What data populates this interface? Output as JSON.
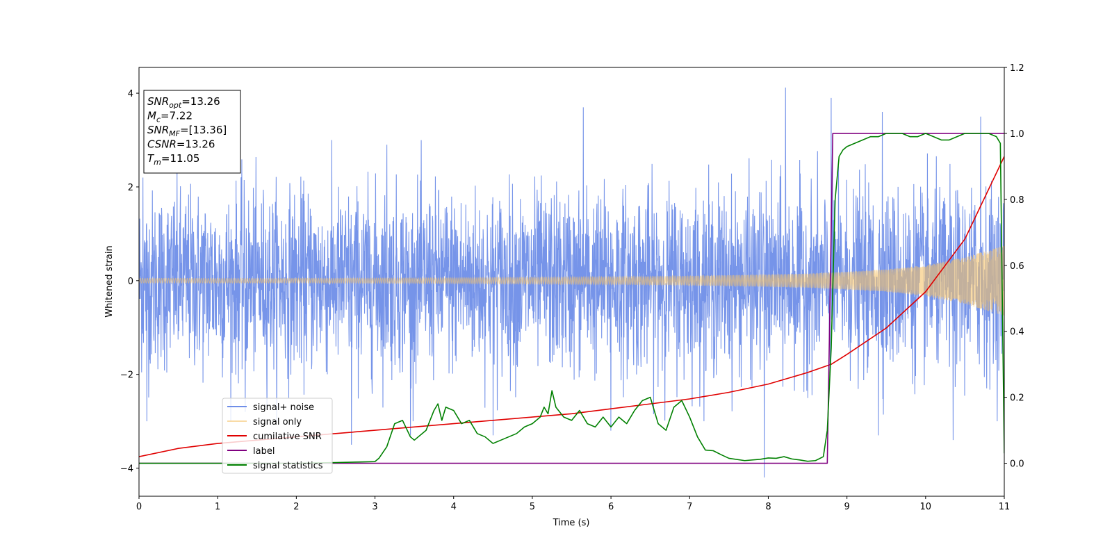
{
  "chart_data": {
    "type": "line",
    "title": "",
    "xlabel": "Time (s)",
    "ylabel": "Whitened strain",
    "xlim": [
      0,
      11
    ],
    "ylim_left": [
      -4.6,
      4.55
    ],
    "ylim_right": [
      -0.1,
      1.2
    ],
    "x_ticks": [
      0,
      1,
      2,
      3,
      4,
      5,
      6,
      7,
      8,
      9,
      10,
      11
    ],
    "y_ticks_left": [
      -4,
      -2,
      0,
      2,
      4
    ],
    "y_ticks_right": [
      "0.0",
      "0.2",
      "0.4",
      "0.6",
      "0.8",
      "1.0",
      "1.2"
    ],
    "grid": false,
    "legend_position": "lower-left",
    "series": [
      {
        "name": "signal+ noise",
        "axis": "left",
        "color": "#6f8ee8",
        "description_values": {
          "approx_range": [
            -4.2,
            4.15
          ],
          "typical_std": 1.0
        },
        "spike_peaks": [
          [
            0.05,
            2.2
          ],
          [
            1.3,
            2.2
          ],
          [
            3.15,
            2.9
          ],
          [
            5.65,
            3.7
          ],
          [
            8.22,
            4.12
          ],
          [
            8.8,
            3.9
          ],
          [
            9.45,
            3.6
          ],
          [
            10.7,
            3.5
          ]
        ],
        "spike_troughs": [
          [
            0.1,
            -3.0
          ],
          [
            1.35,
            -2.8
          ],
          [
            2.7,
            -3.5
          ],
          [
            3.45,
            -3.3
          ],
          [
            4.5,
            -3.3
          ],
          [
            6.0,
            -3.2
          ],
          [
            7.95,
            -4.2
          ],
          [
            9.4,
            -3.3
          ],
          [
            10.35,
            -3.4
          ]
        ]
      },
      {
        "name": "signal only",
        "axis": "left",
        "color": "#f5c36b",
        "envelope": [
          [
            0,
            0.05
          ],
          [
            2,
            0.05
          ],
          [
            4,
            0.06
          ],
          [
            6,
            0.08
          ],
          [
            7,
            0.1
          ],
          [
            8,
            0.13
          ],
          [
            8.5,
            0.15
          ],
          [
            9,
            0.19
          ],
          [
            9.5,
            0.24
          ],
          [
            10,
            0.33
          ],
          [
            10.5,
            0.5
          ],
          [
            10.8,
            0.65
          ],
          [
            11,
            0.75
          ]
        ]
      },
      {
        "name": "cumilative SNR",
        "axis": "right",
        "color": "#e00000",
        "x": [
          0,
          0.5,
          1,
          1.5,
          2,
          2.5,
          3,
          3.5,
          4,
          4.5,
          5,
          5.5,
          6,
          6.5,
          7,
          7.5,
          8,
          8.5,
          8.8,
          9,
          9.5,
          10,
          10.5,
          11
        ],
        "y": [
          0.02,
          0.045,
          0.06,
          0.07,
          0.08,
          0.09,
          0.1,
          0.11,
          0.12,
          0.13,
          0.14,
          0.15,
          0.165,
          0.18,
          0.195,
          0.215,
          0.24,
          0.275,
          0.3,
          0.33,
          0.41,
          0.52,
          0.68,
          0.93
        ]
      },
      {
        "name": "label",
        "axis": "right",
        "color": "#800080",
        "x": [
          0,
          8.75,
          8.82,
          11
        ],
        "y": [
          0.0,
          0.0,
          1.0,
          1.0
        ]
      },
      {
        "name": "signal statistics",
        "axis": "right",
        "color": "#008000",
        "x": [
          0,
          2,
          2.5,
          3,
          3.05,
          3.15,
          3.25,
          3.35,
          3.45,
          3.5,
          3.65,
          3.75,
          3.8,
          3.85,
          3.9,
          4.0,
          4.1,
          4.2,
          4.3,
          4.4,
          4.5,
          4.6,
          4.8,
          4.9,
          5.0,
          5.1,
          5.15,
          5.2,
          5.25,
          5.3,
          5.4,
          5.5,
          5.6,
          5.7,
          5.8,
          5.9,
          6.0,
          6.1,
          6.2,
          6.3,
          6.4,
          6.5,
          6.6,
          6.7,
          6.8,
          6.9,
          7.0,
          7.1,
          7.2,
          7.3,
          7.4,
          7.5,
          7.7,
          7.9,
          8.0,
          8.1,
          8.2,
          8.3,
          8.4,
          8.5,
          8.6,
          8.7,
          8.75,
          8.8,
          8.85,
          8.9,
          8.95,
          9.0,
          9.1,
          9.2,
          9.3,
          9.4,
          9.5,
          9.6,
          9.7,
          9.8,
          9.9,
          10.0,
          10.1,
          10.2,
          10.3,
          10.4,
          10.5,
          10.6,
          10.7,
          10.8,
          10.9,
          10.95,
          11.0
        ],
        "y": [
          0.0,
          0.0,
          0.002,
          0.005,
          0.015,
          0.05,
          0.12,
          0.13,
          0.08,
          0.07,
          0.1,
          0.16,
          0.18,
          0.13,
          0.17,
          0.16,
          0.12,
          0.13,
          0.09,
          0.08,
          0.06,
          0.07,
          0.09,
          0.11,
          0.12,
          0.14,
          0.17,
          0.15,
          0.22,
          0.17,
          0.14,
          0.13,
          0.16,
          0.12,
          0.11,
          0.14,
          0.11,
          0.14,
          0.12,
          0.16,
          0.19,
          0.2,
          0.12,
          0.1,
          0.17,
          0.19,
          0.14,
          0.08,
          0.04,
          0.038,
          0.026,
          0.015,
          0.008,
          0.012,
          0.016,
          0.015,
          0.02,
          0.013,
          0.01,
          0.006,
          0.008,
          0.02,
          0.1,
          0.35,
          0.8,
          0.93,
          0.95,
          0.96,
          0.97,
          0.98,
          0.99,
          0.99,
          1.0,
          1.0,
          1.0,
          0.99,
          0.99,
          1.0,
          0.99,
          0.98,
          0.98,
          0.99,
          1.0,
          1.0,
          1.0,
          1.0,
          0.99,
          0.97,
          0.03
        ]
      }
    ],
    "info_box": [
      {
        "base": "SNR",
        "sub": "opt",
        "rest": "=13.26"
      },
      {
        "base": "M",
        "sub": "c",
        "rest": "=7.22"
      },
      {
        "base": "SNR",
        "sub": "MF",
        "rest": "=[13.36]"
      },
      {
        "base": "CSNR",
        "sub": "",
        "rest": "=13.26"
      },
      {
        "base": "T",
        "sub": "m",
        "rest": "=11.05"
      }
    ]
  }
}
